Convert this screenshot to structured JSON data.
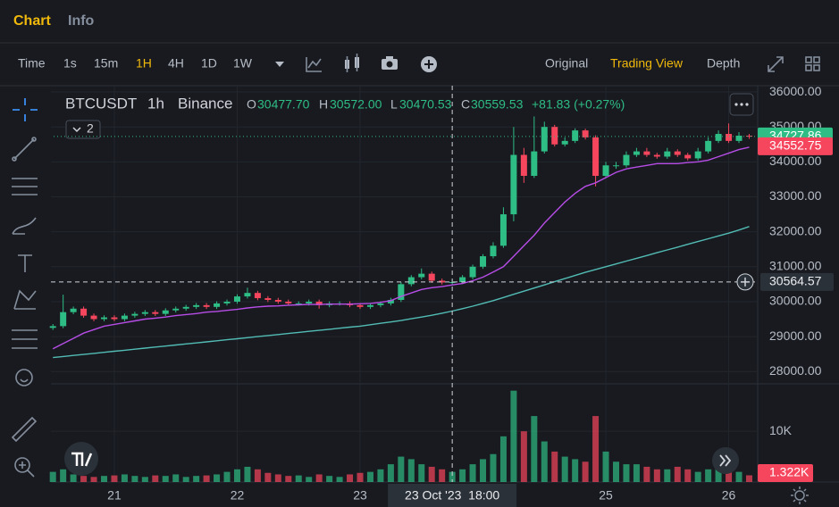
{
  "tabs": [
    "Chart",
    "Info"
  ],
  "toolbar": {
    "intervals": [
      "Time",
      "1s",
      "15m",
      "1H",
      "4H",
      "1D",
      "1W"
    ],
    "views": [
      "Original",
      "Trading View",
      "Depth"
    ]
  },
  "chart_data": {
    "type": "candlestick",
    "symbol": "BTCUSDT",
    "interval": "1h",
    "exchange": "Binance",
    "legend": [
      {
        "key": "O",
        "value": 30477.7,
        "label": "30477.70"
      },
      {
        "key": "H",
        "value": 30572,
        "label": "30572.00"
      },
      {
        "key": "L",
        "value": 30470.53,
        "label": "30470.53"
      },
      {
        "key": "C",
        "value": 30559.53,
        "label": "30559.53"
      }
    ],
    "change": "+81.83 (+0.27%)",
    "indicator_count": 2,
    "categories": [
      null,
      null,
      null,
      null,
      null,
      null,
      "21",
      null,
      null,
      null,
      null,
      null,
      null,
      null,
      null,
      null,
      null,
      null,
      "22",
      null,
      null,
      null,
      null,
      null,
      null,
      null,
      null,
      null,
      null,
      null,
      "23",
      null,
      null,
      null,
      null,
      null,
      null,
      null,
      null,
      null,
      null,
      null,
      null,
      null,
      null,
      null,
      null,
      null,
      null,
      null,
      null,
      null,
      null,
      null,
      "25",
      null,
      null,
      null,
      null,
      null,
      null,
      null,
      null,
      null,
      null,
      null,
      "26",
      null,
      null
    ],
    "open": [
      29250,
      29300,
      29700,
      29800,
      29600,
      29500,
      29550,
      29500,
      29600,
      29650,
      29700,
      29650,
      29750,
      29800,
      29850,
      29900,
      29850,
      29950,
      30000,
      30150,
      30250,
      30100,
      30050,
      30000,
      29950,
      29950,
      30000,
      29900,
      29950,
      29950,
      29900,
      29850,
      29900,
      29950,
      30050,
      30500,
      30700,
      30800,
      30600,
      30550,
      30560,
      30700,
      31000,
      31300,
      31600,
      32500,
      34200,
      33600,
      34300,
      35000,
      34500,
      34600,
      34900,
      34700,
      33600,
      33900,
      33900,
      34200,
      34300,
      34200,
      34150,
      34300,
      34200,
      34100,
      34300,
      34600,
      34800,
      34600,
      34750
    ],
    "high": [
      29360,
      30200,
      29860,
      29860,
      29660,
      29610,
      29610,
      29660,
      29710,
      29760,
      29760,
      29810,
      29860,
      29910,
      29960,
      29960,
      30010,
      30060,
      30210,
      30400,
      30310,
      30160,
      30110,
      30060,
      30010,
      30060,
      30060,
      30010,
      30010,
      30010,
      29960,
      29960,
      30010,
      30110,
      30560,
      30760,
      30950,
      30860,
      30660,
      30620,
      30760,
      31060,
      31360,
      31700,
      32700,
      35000,
      34400,
      35300,
      35150,
      35060,
      34700,
      34960,
      34950,
      34760,
      34000,
      34000,
      34300,
      34400,
      34400,
      34260,
      34400,
      34360,
      34260,
      34400,
      34700,
      34900,
      35100,
      34850,
      34800
    ],
    "low": [
      29190,
      29240,
      29640,
      29540,
      29440,
      29440,
      29440,
      29440,
      29540,
      29590,
      29590,
      29590,
      29690,
      29740,
      29790,
      29790,
      29790,
      29890,
      29940,
      30090,
      30040,
      29990,
      29940,
      29890,
      29890,
      29890,
      29800,
      29840,
      29890,
      29840,
      29790,
      29790,
      29840,
      29890,
      29990,
      30440,
      30640,
      30540,
      30490,
      30490,
      30500,
      30640,
      30940,
      31240,
      31540,
      32300,
      33400,
      33540,
      34240,
      34440,
      34440,
      34540,
      34640,
      33300,
      33540,
      33800,
      33840,
      34140,
      34140,
      34090,
      34090,
      34140,
      34040,
      34040,
      34240,
      34540,
      34540,
      34540,
      34660
    ],
    "close": [
      29300,
      29700,
      29800,
      29600,
      29500,
      29550,
      29500,
      29600,
      29650,
      29700,
      29650,
      29750,
      29800,
      29850,
      29900,
      29850,
      29950,
      30000,
      30150,
      30250,
      30100,
      30050,
      30000,
      29950,
      29950,
      30000,
      29900,
      29950,
      29950,
      29900,
      29850,
      29900,
      29950,
      30050,
      30500,
      30700,
      30800,
      30600,
      30550,
      30560,
      30700,
      31000,
      31300,
      31600,
      32500,
      34200,
      33600,
      34300,
      35000,
      34500,
      34600,
      34900,
      34700,
      33600,
      33900,
      33900,
      34200,
      34300,
      34200,
      34150,
      34300,
      34200,
      34100,
      34300,
      34600,
      34800,
      34600,
      34750,
      34727.86
    ],
    "up_color": "#2ebd85",
    "down_color": "#f6465d",
    "ma": [
      {
        "color": "#b74de6",
        "values": [
          28650,
          28800,
          28950,
          29100,
          29200,
          29300,
          29350,
          29400,
          29450,
          29500,
          29530,
          29560,
          29600,
          29630,
          29660,
          29700,
          29720,
          29750,
          29780,
          29820,
          29850,
          29870,
          29880,
          29900,
          29910,
          29920,
          29920,
          29930,
          29930,
          29930,
          29940,
          29950,
          29980,
          30030,
          30150,
          30250,
          30350,
          30400,
          30430,
          30480,
          30520,
          30600,
          30700,
          30850,
          31000,
          31300,
          31600,
          31900,
          32250,
          32550,
          32850,
          33100,
          33300,
          33400,
          33550,
          33700,
          33800,
          33850,
          33900,
          33950,
          33950,
          33950,
          33980,
          34000,
          34050,
          34150,
          34250,
          34350,
          34420
        ]
      },
      {
        "color": "#52bcb4",
        "values": [
          28400,
          28430,
          28460,
          28490,
          28520,
          28550,
          28580,
          28610,
          28640,
          28670,
          28700,
          28730,
          28760,
          28790,
          28820,
          28850,
          28880,
          28910,
          28940,
          28970,
          29000,
          29030,
          29060,
          29090,
          29120,
          29150,
          29180,
          29210,
          29240,
          29270,
          29300,
          29340,
          29380,
          29420,
          29460,
          29510,
          29560,
          29610,
          29670,
          29730,
          29800,
          29870,
          29950,
          30030,
          30120,
          30210,
          30300,
          30390,
          30480,
          30570,
          30660,
          30750,
          30840,
          30920,
          31000,
          31080,
          31160,
          31240,
          31320,
          31400,
          31480,
          31560,
          31640,
          31720,
          31800,
          31880,
          31960,
          32050,
          32150
        ]
      }
    ],
    "ylim": [
      27700,
      36180
    ],
    "yticks": [
      {
        "value": 28000,
        "label": "28000.00"
      },
      {
        "value": 29000,
        "label": "29000.00"
      },
      {
        "value": 30000,
        "label": "30000.00"
      },
      {
        "value": 31000,
        "label": "31000.00"
      },
      {
        "value": 32000,
        "label": "32000.00"
      },
      {
        "value": 33000,
        "label": "33000.00"
      },
      {
        "value": 34000,
        "label": "34000.00"
      },
      {
        "value": 35000,
        "label": "35000.00"
      },
      {
        "value": 36000,
        "label": "36000.00"
      }
    ],
    "last_price": 34727.86,
    "ma_label": 34552.75,
    "crosshair": {
      "price": 30564.57,
      "time": "23 Oct '23  18:00"
    },
    "volume": {
      "values": [
        2000,
        2500,
        1500,
        1200,
        1000,
        1200,
        1300,
        1500,
        1200,
        1000,
        1300,
        1200,
        1500,
        1000,
        1200,
        1300,
        1500,
        2000,
        2500,
        3000,
        2500,
        1800,
        1500,
        1200,
        1300,
        1000,
        1500,
        1200,
        1000,
        1500,
        1800,
        2000,
        2500,
        3500,
        5000,
        4500,
        3500,
        3000,
        2500,
        2000,
        2500,
        3500,
        4500,
        5500,
        9000,
        18000,
        10000,
        13000,
        8000,
        6000,
        5000,
        4500,
        4000,
        13000,
        6000,
        4000,
        3500,
        3500,
        3000,
        2500,
        2500,
        3000,
        2500,
        2000,
        2500,
        3500,
        3000,
        2000,
        1322
      ],
      "ylim": [
        0,
        19000
      ],
      "yticks": [
        {
          "value": 10000,
          "label": "10K"
        }
      ],
      "last": {
        "value": 1322,
        "label": "1.322K"
      }
    }
  }
}
